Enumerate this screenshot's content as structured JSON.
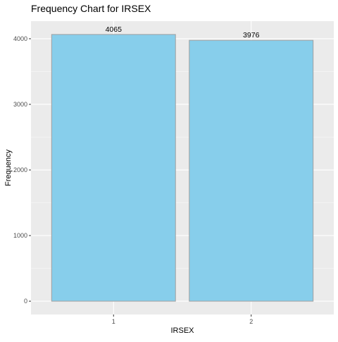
{
  "chart_data": {
    "type": "bar",
    "title": "Frequency Chart for IRSEX",
    "xlabel": "IRSEX",
    "ylabel": "Frequency",
    "categories": [
      "1",
      "2"
    ],
    "values": [
      4065,
      3976
    ],
    "data_labels": [
      "4065",
      "3976"
    ],
    "yticks": [
      0,
      1000,
      2000,
      3000,
      4000
    ],
    "ytick_labels": [
      "0",
      "1000",
      "2000",
      "3000",
      "4000"
    ],
    "ylim": [
      -203,
      4268
    ],
    "grid": true,
    "bar_color": "#87CEEB",
    "bar_outline": "#a0a0a0",
    "panel_background": "#EBEBEB"
  }
}
